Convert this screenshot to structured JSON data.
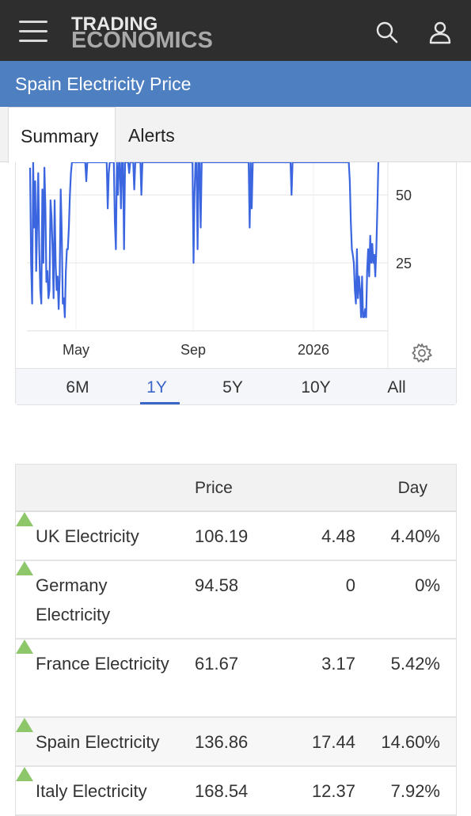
{
  "header": {
    "logo_line1": "TRADING",
    "logo_line2": "ECONOMICS",
    "icons": [
      "hamburger-menu-icon",
      "search-icon",
      "user-icon"
    ]
  },
  "page_title": "Spain Electricity Price",
  "tabs": [
    {
      "label": "Summary",
      "active": true
    },
    {
      "label": "Alerts",
      "active": false
    }
  ],
  "chart_data": {
    "type": "line",
    "color": "#3b66e0",
    "x_ticks": [
      "May",
      "Sep",
      "2026"
    ],
    "y_ticks": [
      25,
      50
    ],
    "ylim": [
      0,
      62
    ],
    "grid": true,
    "values": [
      60,
      25,
      10,
      62,
      38,
      55,
      22,
      40,
      58,
      30,
      15,
      10,
      52,
      25,
      60,
      45,
      18,
      22,
      12,
      15,
      48,
      42,
      30,
      12,
      48,
      25,
      15,
      20,
      8,
      20,
      52,
      36,
      10,
      12,
      5,
      22,
      30,
      30,
      38,
      50,
      58,
      62,
      62,
      62,
      62,
      62,
      62,
      62,
      62,
      62,
      62,
      62,
      62,
      62,
      62,
      55,
      62,
      62,
      62,
      62,
      62,
      62,
      62,
      62,
      62,
      62,
      62,
      62,
      62,
      62,
      62,
      62,
      62,
      62,
      62,
      62,
      45,
      58,
      62,
      62,
      62,
      62,
      62,
      40,
      30,
      62,
      50,
      62,
      62,
      45,
      62,
      62,
      30,
      62,
      62,
      62,
      62,
      58,
      62,
      62,
      62,
      62,
      52,
      62,
      62,
      62,
      62,
      62,
      62,
      50,
      62,
      62,
      62,
      62,
      62,
      62,
      62,
      62,
      62,
      62,
      62,
      62,
      62,
      62,
      62,
      62,
      62,
      62,
      62,
      62,
      62,
      62,
      62,
      62,
      62,
      62,
      62,
      62,
      62,
      62,
      62,
      62,
      62,
      62,
      62,
      62,
      62,
      62,
      62,
      62,
      62,
      62,
      62,
      62,
      62,
      62,
      62,
      62,
      62,
      62,
      25,
      50,
      62,
      62,
      30,
      62,
      62,
      38,
      62,
      62,
      62,
      62,
      62,
      62,
      62,
      62,
      62,
      62,
      62,
      62,
      62,
      62,
      62,
      62,
      62,
      62,
      62,
      62,
      62,
      62,
      62,
      62,
      62,
      62,
      62,
      62,
      62,
      62,
      62,
      62,
      62,
      62,
      62,
      62,
      62,
      62,
      62,
      62,
      62,
      62,
      62,
      62,
      62,
      62,
      62,
      38,
      62,
      45,
      62,
      62,
      62,
      62,
      62,
      62,
      62,
      62,
      62,
      62,
      62,
      62,
      62,
      62,
      62,
      62,
      62,
      62,
      62,
      62,
      62,
      62,
      62,
      62,
      62,
      62,
      62,
      62,
      62,
      62,
      62,
      62,
      62,
      62,
      62,
      62,
      62,
      62,
      50,
      62,
      62,
      62,
      62,
      62,
      62,
      62,
      62,
      62,
      62,
      62,
      62,
      62,
      62,
      62,
      62,
      62,
      62,
      62,
      62,
      62,
      62,
      62,
      62,
      62,
      62,
      62,
      62,
      62,
      62,
      62,
      62,
      62,
      62,
      62,
      62,
      62,
      62,
      62,
      62,
      62,
      62,
      62,
      62,
      62,
      62,
      62,
      62,
      62,
      62,
      62,
      62,
      62,
      62,
      62,
      62,
      55,
      40,
      30,
      28,
      25,
      15,
      10,
      30,
      12,
      20,
      15,
      5,
      20,
      5,
      5,
      8,
      5,
      22,
      30,
      20,
      35,
      25,
      32,
      25,
      28,
      20,
      30,
      45,
      62
    ],
    "range_options": [
      "6M",
      "1Y",
      "5Y",
      "10Y",
      "All"
    ],
    "selected_range": "1Y"
  },
  "table": {
    "headers": {
      "price": "Price",
      "day": "Day"
    },
    "rows": [
      {
        "name": "UK Electricity",
        "price": "106.19",
        "change": "4.48",
        "pct": "4.40%",
        "direction": "up"
      },
      {
        "name": "Germany Electricity",
        "price": "94.58",
        "change": "0",
        "pct": "0%",
        "direction": "up"
      },
      {
        "name": "France Electricity",
        "price": "61.67",
        "change": "3.17",
        "pct": "5.42%",
        "direction": "up"
      },
      {
        "name": "Spain Electricity",
        "price": "136.86",
        "change": "17.44",
        "pct": "14.60%",
        "direction": "up"
      },
      {
        "name": "Italy Electricity",
        "price": "168.54",
        "change": "12.37",
        "pct": "7.92%",
        "direction": "up"
      }
    ],
    "up_color": "#8ec66a"
  }
}
